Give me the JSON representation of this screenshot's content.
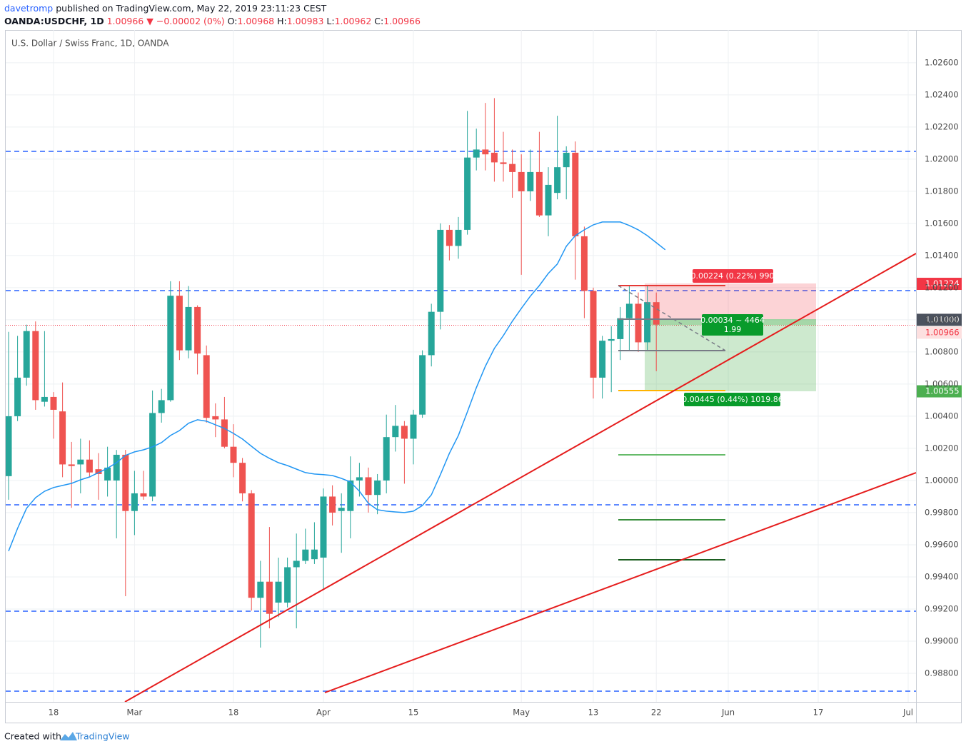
{
  "header": {
    "author": "davetromp",
    "published": "published on TradingView.com, May 22, 2019 23:11:23 CEST",
    "symbol": "OANDA:USDCHF, 1D",
    "last": "1.00966",
    "arrow": "▼",
    "change": "−0.00002 (0%)",
    "ohlc": [
      {
        "label": "O:",
        "value": "1.00968"
      },
      {
        "label": "H:",
        "value": "1.00983"
      },
      {
        "label": "L:",
        "value": "1.00962"
      },
      {
        "label": "C:",
        "value": "1.00966"
      }
    ]
  },
  "chart_data": {
    "type": "candlestick",
    "title": "U.S. Dollar / Swiss Franc, 1D, OANDA",
    "categories": [
      null,
      null,
      null,
      null,
      null,
      "18",
      null,
      null,
      null,
      null,
      null,
      null,
      null,
      null,
      "Mar",
      null,
      null,
      null,
      null,
      null,
      null,
      null,
      null,
      null,
      null,
      "18",
      null,
      null,
      null,
      null,
      null,
      null,
      null,
      null,
      null,
      "Apr",
      null,
      null,
      null,
      null,
      null,
      null,
      null,
      null,
      null,
      "15",
      null,
      null,
      null,
      null,
      null,
      null,
      null,
      null,
      null,
      null,
      null,
      "May",
      null,
      null,
      null,
      null,
      null,
      null,
      null,
      "13",
      null,
      null,
      null,
      null,
      null,
      null,
      "22",
      null,
      null,
      null,
      null,
      null,
      null,
      null,
      "Jun",
      null,
      null,
      null,
      null,
      null,
      null,
      null,
      null,
      null,
      "17",
      null,
      null,
      null,
      null,
      null,
      null,
      null,
      null,
      null,
      "Jul"
    ],
    "open": [
      1.00027,
      1.004,
      1.0064,
      1.0093,
      1.0049,
      1.0052,
      1.0043,
      1.001,
      1.001,
      1.0013,
      1.0007,
      1.0,
      1.0,
      1.0016,
      0.9981,
      0.9992,
      0.999,
      1.0042,
      1.005,
      1.0115,
      1.0081,
      1.0108,
      1.0078,
      1.004,
      1.0038,
      1.0021,
      1.0011,
      0.9992,
      0.9927,
      0.9937,
      0.9924,
      0.9924,
      0.9946,
      0.995,
      0.9951,
      0.9952,
      0.999,
      0.9981,
      0.9981,
      1.0,
      1.0002,
      0.9991,
      1.0,
      1.0027,
      1.0034,
      1.0026,
      1.0041,
      1.0078,
      1.0105,
      1.0156,
      1.0146,
      1.0156,
      1.0201,
      1.0206,
      1.0204,
      1.0198,
      1.0197,
      1.0192,
      1.018,
      1.0192,
      1.0165,
      1.0179,
      1.0195,
      1.0204,
      1.0152,
      1.0118,
      1.0064,
      1.0087,
      1.0088,
      1.0101,
      1.011,
      1.0086,
      1.0111,
      null,
      null,
      null,
      null,
      null,
      null,
      null,
      null,
      null,
      null,
      null,
      null,
      null,
      null,
      null,
      null,
      null,
      null,
      null,
      null,
      null,
      null,
      null,
      null,
      null,
      null,
      null,
      null
    ],
    "high": [
      1.00925,
      1.009,
      1.0097,
      1.0099,
      1.0093,
      1.0055,
      1.0061,
      1.0024,
      1.0026,
      1.0025,
      1.0017,
      1.0021,
      1.0019,
      1.0019,
      1.0006,
      1.0006,
      1.0056,
      1.0057,
      1.0124,
      1.0124,
      1.0121,
      1.0109,
      1.0084,
      1.0048,
      1.0052,
      1.0035,
      1.0014,
      0.9994,
      0.995,
      0.9971,
      0.9952,
      0.9952,
      0.9967,
      0.997,
      0.9974,
      0.9995,
      0.9997,
      0.9992,
      1.0015,
      1.0011,
      1.0008,
      1.0004,
      1.0041,
      1.0047,
      1.0037,
      1.0044,
      1.0081,
      1.011,
      1.016,
      1.0159,
      1.0164,
      1.023,
      1.0219,
      1.0235,
      1.0238,
      1.0217,
      1.0206,
      1.0203,
      1.0206,
      1.0217,
      1.0195,
      1.0227,
      1.0208,
      1.0211,
      1.0158,
      1.012,
      1.009,
      1.0096,
      1.0108,
      1.0121,
      1.0117,
      1.0121,
      1.0117,
      null,
      null,
      null,
      null,
      null,
      null,
      null,
      null,
      null,
      null,
      null,
      null,
      null,
      null,
      null,
      null,
      null,
      null,
      null,
      null,
      null,
      null,
      null,
      null,
      null,
      null,
      null,
      null
    ],
    "low": [
      0.9988,
      1.0037,
      1.0059,
      1.0044,
      1.0046,
      1.0026,
      1.0002,
      0.9983,
      0.9992,
      1.0002,
      0.9988,
      0.999,
      0.9964,
      0.9928,
      0.9966,
      0.9988,
      0.9987,
      1.0036,
      1.0049,
      1.0075,
      1.0076,
      1.0066,
      1.0036,
      1.0027,
      1.002,
      1.0002,
      0.9987,
      0.9919,
      0.9896,
      0.9908,
      0.9915,
      0.9921,
      0.9908,
      0.9948,
      0.9948,
      0.9932,
      0.9972,
      0.9955,
      0.9964,
      0.999,
      0.998,
      0.9979,
      0.9992,
      1.0018,
      0.9998,
      1.001,
      1.0039,
      1.0071,
      1.0094,
      1.0137,
      1.0138,
      1.0153,
      1.0193,
      1.0193,
      1.0186,
      1.0186,
      1.0176,
      1.0128,
      1.0174,
      1.0164,
      1.0152,
      1.0175,
      1.0175,
      1.0125,
      1.0101,
      1.0051,
      1.0051,
      1.0055,
      1.0075,
      1.0081,
      1.008,
      1.0081,
      1.0068,
      null,
      null,
      null,
      null,
      null,
      null,
      null,
      null,
      null,
      null,
      null,
      null,
      null,
      null,
      null,
      null,
      null,
      null,
      null,
      null,
      null,
      null,
      null,
      null,
      null,
      null,
      null,
      null
    ],
    "close": [
      1.004,
      1.0064,
      1.0093,
      1.005,
      1.0052,
      1.0044,
      1.001,
      1.0009,
      1.0013,
      1.0005,
      1.0004,
      1.0008,
      1.0016,
      0.9981,
      0.9992,
      0.999,
      1.0042,
      1.005,
      1.0115,
      1.0081,
      1.0108,
      1.0079,
      1.0039,
      1.0038,
      1.0021,
      1.0011,
      0.9992,
      0.9927,
      0.9937,
      0.9917,
      0.9937,
      0.9946,
      0.995,
      0.9957,
      0.9957,
      0.999,
      0.998,
      0.9983,
      1.0,
      1.0002,
      0.9991,
      1.0,
      1.0027,
      1.0034,
      1.0026,
      1.0041,
      1.0078,
      1.0105,
      1.0156,
      1.0146,
      1.0156,
      1.0201,
      1.0206,
      1.0203,
      1.0198,
      1.0197,
      1.0192,
      1.018,
      1.0192,
      1.0165,
      1.0184,
      1.0195,
      1.0204,
      1.0152,
      1.0118,
      1.0064,
      1.0087,
      1.0088,
      1.0101,
      1.011,
      1.0086,
      1.0111,
      1.0097,
      null,
      null,
      null,
      null,
      null,
      null,
      null,
      null,
      null,
      null,
      null,
      null,
      null,
      null,
      null,
      null,
      null,
      null,
      null,
      null,
      null,
      null,
      null,
      null,
      null,
      null,
      null,
      null
    ],
    "up_color": "#26a69a",
    "down_color": "#ef5350",
    "moving_average": {
      "color": "#2196f3",
      "values": [
        0.9956,
        0.99702,
        0.99827,
        0.99893,
        0.99933,
        0.99956,
        0.99969,
        0.99982,
        1.00004,
        1.00022,
        1.00049,
        1.00076,
        1.00111,
        1.00156,
        1.00178,
        1.00191,
        1.00209,
        1.00236,
        1.0028,
        1.00311,
        1.00356,
        1.00378,
        1.00369,
        1.00347,
        1.00324,
        1.00293,
        1.00258,
        1.00213,
        1.00169,
        1.00138,
        1.00111,
        1.00093,
        1.00071,
        1.00049,
        1.0004,
        1.00036,
        1.00031,
        1.00013,
        0.99991,
        0.99933,
        0.99858,
        0.99818,
        0.99809,
        0.99804,
        0.998,
        0.99809,
        0.99844,
        0.99911,
        1.00036,
        1.00169,
        1.0028,
        1.00427,
        1.00578,
        1.00711,
        1.00822,
        1.00902,
        1.00991,
        1.01071,
        1.01147,
        1.01213,
        1.01289,
        1.01347,
        1.01458,
        1.01524,
        1.0156,
        1.01591,
        1.01609,
        1.01609,
        1.01609,
        1.01587,
        1.0156,
        1.01524,
        1.0148,
        1.01436,
        null,
        null,
        null,
        null,
        null,
        null,
        null,
        null,
        null,
        null,
        null,
        null,
        null,
        null,
        null,
        null,
        null,
        null,
        null,
        null,
        null,
        null,
        null,
        null,
        null,
        null,
        null
      ]
    },
    "ylim": [
      0.98622,
      1.02804
    ],
    "yticks": [
      {
        "value": 0.988,
        "label": "0.98800"
      },
      {
        "value": 0.99,
        "label": "0.99000"
      },
      {
        "value": 0.992,
        "label": "0.99200"
      },
      {
        "value": 0.994,
        "label": "0.99400"
      },
      {
        "value": 0.996,
        "label": "0.99600"
      },
      {
        "value": 0.998,
        "label": "0.99800"
      },
      {
        "value": 1.0,
        "label": "1.00000"
      },
      {
        "value": 1.002,
        "label": "1.00200"
      },
      {
        "value": 1.004,
        "label": "1.00400"
      },
      {
        "value": 1.006,
        "label": "1.00600"
      },
      {
        "value": 1.008,
        "label": "1.00800"
      },
      {
        "value": 1.01,
        "label": "1.01000"
      },
      {
        "value": 1.012,
        "label": "1.01200"
      },
      {
        "value": 1.014,
        "label": "1.01400"
      },
      {
        "value": 1.016,
        "label": "1.01600"
      },
      {
        "value": 1.018,
        "label": "1.01800"
      },
      {
        "value": 1.02,
        "label": "1.02000"
      },
      {
        "value": 1.022,
        "label": "1.02200"
      },
      {
        "value": 1.024,
        "label": "1.02400"
      },
      {
        "value": 1.026,
        "label": "1.02600"
      }
    ],
    "grid": true,
    "price_tags": [
      {
        "value": 1.01224,
        "label": "1.01224",
        "color": "#f23645",
        "text_color": "#ffffff"
      },
      {
        "value": 1.01,
        "label": "1.01000",
        "color": "#4c525e",
        "text_color": "#ffffff"
      },
      {
        "value": 1.00966,
        "label": "1.00966",
        "color": "#fde0e0",
        "text_color": "#f23645"
      },
      {
        "value": 1.00555,
        "label": "1.00555",
        "color": "#4caf50",
        "text_color": "#ffffff"
      }
    ],
    "position_labels": {
      "risk": "0.00224 (0.22%) 990",
      "ratio_top": "0.00034 ~ 4464",
      "ratio_bottom": "1.99",
      "reward": "0.00445 (0.44%) 1019.86"
    }
  },
  "footer": {
    "created": "Created with",
    "brand": "TradingView"
  }
}
